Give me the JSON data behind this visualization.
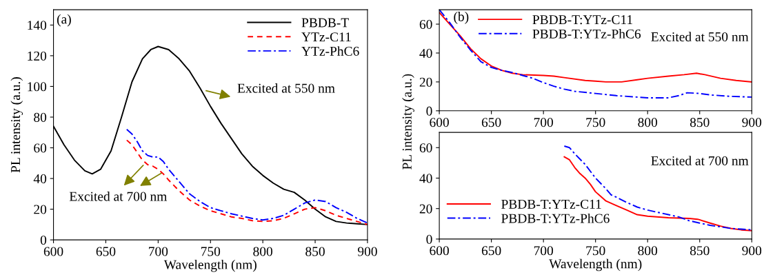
{
  "chart_data": [
    {
      "type": "line",
      "title": "(a)",
      "xlabel": "Wavelength (nm)",
      "ylabel": "PL intensity (a.u.)",
      "xlim": [
        600,
        900
      ],
      "ylim": [
        0,
        150
      ],
      "xticks": [
        600,
        650,
        700,
        750,
        800,
        850,
        900
      ],
      "yticks": [
        0,
        20,
        40,
        60,
        80,
        100,
        120,
        140
      ],
      "legend": "top right",
      "grid": false,
      "annotations": [
        "Excited at 550 nm",
        "Excited at 700 nm"
      ],
      "series": [
        {
          "name": "PBDB-T",
          "color": "#000000",
          "line_style": "solid",
          "x": [
            600,
            610,
            620,
            630,
            637,
            645,
            655,
            665,
            675,
            685,
            693,
            700,
            710,
            720,
            730,
            740,
            750,
            760,
            770,
            780,
            790,
            800,
            810,
            820,
            830,
            840,
            850,
            860,
            870,
            880,
            890,
            900
          ],
          "values": [
            74,
            62,
            52,
            45,
            43,
            46,
            58,
            80,
            103,
            118,
            124,
            126,
            124,
            118,
            110,
            99,
            87,
            76,
            66,
            56,
            48,
            42,
            37,
            33,
            31,
            26,
            20,
            15,
            12,
            11,
            10.5,
            10
          ]
        },
        {
          "name": "YTz-C11",
          "color": "#ff0000",
          "line_style": "dashed",
          "x": [
            670,
            675,
            680,
            685,
            690,
            695,
            700,
            705,
            710,
            720,
            730,
            740,
            750,
            760,
            770,
            780,
            790,
            800,
            810,
            820,
            830,
            840,
            850,
            860,
            870,
            880,
            890,
            900
          ],
          "values": [
            65,
            62,
            57,
            52,
            49,
            48,
            46,
            43,
            39,
            32,
            26,
            22,
            19,
            17,
            15,
            14,
            12.5,
            12,
            12.5,
            14,
            17,
            20,
            21,
            19,
            16,
            14,
            12,
            10
          ]
        },
        {
          "name": "YTz-PhC6",
          "color": "#0000ff",
          "line_style": "dashdot",
          "x": [
            670,
            675,
            680,
            685,
            690,
            695,
            700,
            705,
            710,
            720,
            730,
            740,
            750,
            760,
            770,
            780,
            790,
            800,
            810,
            820,
            830,
            840,
            850,
            860,
            870,
            880,
            890,
            900
          ],
          "values": [
            72,
            69,
            64,
            58,
            55,
            54,
            54,
            51,
            46,
            38,
            30,
            25,
            21,
            19,
            17,
            15.5,
            14,
            13,
            14,
            16,
            20,
            24,
            26,
            25,
            21,
            18,
            14,
            11
          ]
        }
      ]
    },
    {
      "type": "line",
      "title": "(b)",
      "xlim": [
        600,
        900
      ],
      "ylim": [
        0,
        70
      ],
      "xticks": [
        600,
        650,
        700,
        750,
        800,
        850,
        900
      ],
      "yticks": [
        0,
        20,
        40,
        60
      ],
      "legend": "top",
      "grid": false,
      "annotations": [
        "Excited at 550 nm"
      ],
      "series": [
        {
          "name": "PBDB-T:YTz-C11",
          "color": "#ff0000",
          "line_style": "solid",
          "x": [
            600,
            610,
            620,
            630,
            640,
            650,
            660,
            670,
            680,
            700,
            710,
            720,
            740,
            750,
            760,
            775,
            790,
            800,
            820,
            835,
            847,
            855,
            870,
            885,
            900
          ],
          "values": [
            68,
            60,
            52,
            43,
            36,
            31,
            28,
            26,
            25,
            24.5,
            24,
            23,
            21,
            20.5,
            20,
            20,
            21.5,
            22.5,
            24,
            25,
            26,
            25,
            22.5,
            21,
            20
          ]
        },
        {
          "name": "PBDB-T:YTz-PhC6",
          "color": "#0000ff",
          "line_style": "dashdot",
          "x": [
            600,
            610,
            620,
            630,
            640,
            650,
            660,
            670,
            680,
            690,
            700,
            710,
            720,
            730,
            750,
            770,
            790,
            800,
            820,
            830,
            838,
            850,
            860,
            880,
            900
          ],
          "values": [
            70,
            61,
            51,
            42,
            34,
            30,
            28,
            26.5,
            24.5,
            22.5,
            19.5,
            17,
            15,
            13.5,
            12,
            10.5,
            9.5,
            9,
            9,
            10.5,
            12.5,
            12,
            11,
            10,
            9.5
          ]
        }
      ]
    },
    {
      "type": "line",
      "xlabel": "Wavelength (nm)",
      "ylabel": "PL intensity (a.u.)",
      "xlim": [
        600,
        900
      ],
      "ylim": [
        0,
        70
      ],
      "xticks": [
        600,
        650,
        700,
        750,
        800,
        850,
        900
      ],
      "yticks": [
        0,
        20,
        40,
        60
      ],
      "legend": "bottom left",
      "grid": false,
      "annotations": [
        "Excited at 700 nm"
      ],
      "series": [
        {
          "name": "PBDB-T:YTz-C11",
          "color": "#ff0000",
          "line_style": "solid",
          "x": [
            720,
            725,
            730,
            735,
            740,
            745,
            750,
            755,
            760,
            770,
            780,
            790,
            800,
            820,
            840,
            848,
            860,
            870,
            880,
            890,
            900
          ],
          "values": [
            54,
            52,
            47,
            43,
            40,
            36,
            31,
            28,
            25,
            22,
            19,
            16,
            15,
            14,
            13.5,
            13,
            10.5,
            8.5,
            7,
            6,
            5.5
          ]
        },
        {
          "name": "PBDB-T:YTz-PhC6",
          "color": "#0000ff",
          "line_style": "dashdot",
          "x": [
            720,
            725,
            730,
            740,
            750,
            760,
            765,
            770,
            780,
            790,
            800,
            810,
            820,
            830,
            840,
            850,
            860,
            870,
            880,
            890,
            900
          ],
          "values": [
            61,
            60,
            56,
            49,
            40,
            33,
            29,
            27.5,
            24,
            21,
            19,
            17.5,
            16,
            14.5,
            12,
            10.5,
            9,
            8,
            7,
            6.5,
            6
          ]
        }
      ]
    }
  ]
}
